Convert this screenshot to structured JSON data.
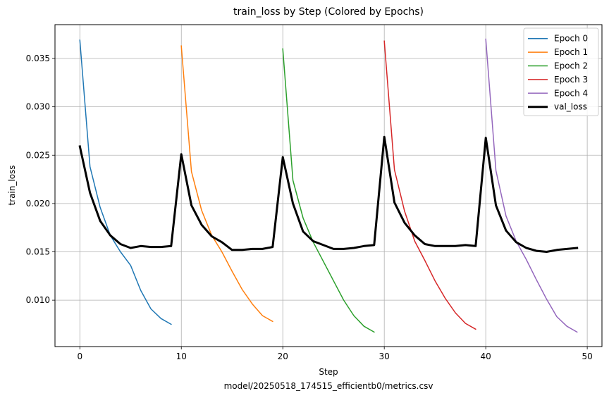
{
  "chart_data": {
    "type": "line",
    "title": "train_loss by Step (Colored by Epochs)",
    "xlabel": "Step",
    "ylabel": "train_loss",
    "subtitle": "model/20250518_174515_efficientb0/metrics.csv",
    "xlim": [
      -2.45,
      51.45
    ],
    "ylim": [
      0.0052,
      0.0385
    ],
    "xticks": [
      0,
      10,
      20,
      30,
      40,
      50
    ],
    "yticks": [
      0.01,
      0.015,
      0.02,
      0.025,
      0.03,
      0.035
    ],
    "ytick_labels": [
      "0.010",
      "0.015",
      "0.020",
      "0.025",
      "0.030",
      "0.035"
    ],
    "grid": true,
    "legend_position": "top-right",
    "series": [
      {
        "name": "Epoch 0",
        "color": "#1f77b4",
        "width": 1.5,
        "x": [
          0,
          1,
          2,
          3,
          4,
          5,
          6,
          7,
          8,
          9
        ],
        "y": [
          0.0369,
          0.0238,
          0.0196,
          0.0167,
          0.015,
          0.0136,
          0.011,
          0.0091,
          0.0081,
          0.0075
        ]
      },
      {
        "name": "Epoch 1",
        "color": "#ff7f0e",
        "width": 1.5,
        "x": [
          10,
          11,
          12,
          13,
          14,
          15,
          16,
          17,
          18,
          19
        ],
        "y": [
          0.0363,
          0.0233,
          0.0193,
          0.0167,
          0.015,
          0.013,
          0.0111,
          0.0096,
          0.0084,
          0.0078
        ]
      },
      {
        "name": "Epoch 2",
        "color": "#2ca02c",
        "width": 1.5,
        "x": [
          20,
          21,
          22,
          23,
          24,
          25,
          26,
          27,
          28,
          29
        ],
        "y": [
          0.036,
          0.0224,
          0.0185,
          0.016,
          0.014,
          0.012,
          0.01,
          0.0084,
          0.0073,
          0.0067
        ]
      },
      {
        "name": "Epoch 3",
        "color": "#d62728",
        "width": 1.5,
        "x": [
          30,
          31,
          32,
          33,
          34,
          35,
          36,
          37,
          38,
          39
        ],
        "y": [
          0.0368,
          0.0235,
          0.0192,
          0.0161,
          0.0141,
          0.012,
          0.0102,
          0.0087,
          0.0076,
          0.007
        ]
      },
      {
        "name": "Epoch 4",
        "color": "#9467bd",
        "width": 1.5,
        "x": [
          40,
          41,
          42,
          43,
          44,
          45,
          46,
          47,
          48,
          49
        ],
        "y": [
          0.037,
          0.0234,
          0.0187,
          0.0161,
          0.0142,
          0.0121,
          0.0101,
          0.0083,
          0.0073,
          0.0067
        ]
      },
      {
        "name": "val_loss",
        "color": "#000000",
        "width": 3,
        "x": [
          0,
          1,
          2,
          3,
          4,
          5,
          6,
          7,
          8,
          9,
          10,
          11,
          12,
          13,
          14,
          15,
          16,
          17,
          18,
          19,
          20,
          21,
          22,
          23,
          24,
          25,
          26,
          27,
          28,
          29,
          30,
          31,
          32,
          33,
          34,
          35,
          36,
          37,
          38,
          39,
          40,
          41,
          42,
          43,
          44,
          45,
          46,
          47,
          48,
          49
        ],
        "y": [
          0.0259,
          0.0211,
          0.0182,
          0.0167,
          0.0158,
          0.0154,
          0.0156,
          0.0155,
          0.0155,
          0.0156,
          0.0251,
          0.0198,
          0.0178,
          0.0166,
          0.016,
          0.0152,
          0.0152,
          0.0153,
          0.0153,
          0.0155,
          0.0248,
          0.02,
          0.0171,
          0.0161,
          0.0157,
          0.0153,
          0.0153,
          0.0154,
          0.0156,
          0.0157,
          0.0269,
          0.0201,
          0.018,
          0.0167,
          0.0158,
          0.0156,
          0.0156,
          0.0156,
          0.0157,
          0.0156,
          0.0268,
          0.0198,
          0.0172,
          0.016,
          0.0154,
          0.0151,
          0.015,
          0.0152,
          0.0153,
          0.0154
        ]
      }
    ]
  }
}
